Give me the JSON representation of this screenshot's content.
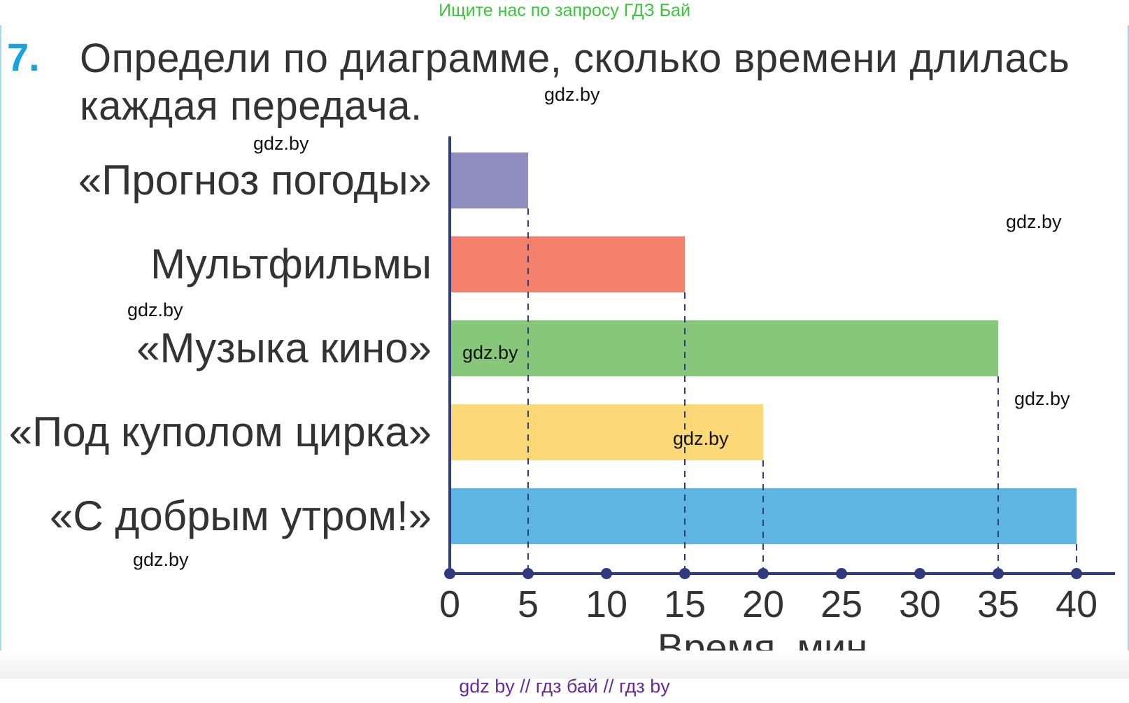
{
  "banner": "Ищите нас по запросу ГДЗ Бай",
  "task": {
    "number": "7.",
    "text": "Определи по диаграмме, сколько времени длилась каждая передача."
  },
  "watermarks": [
    "gdz.by",
    "gdz.by",
    "gdz.by",
    "gdz.by",
    "gdz.by",
    "gdz.by",
    "gdz.by",
    "gdz.by",
    "gdz.by"
  ],
  "footer": "gdz by  //  гдз бай  //  гдз by",
  "chart_data": {
    "type": "bar",
    "orientation": "horizontal",
    "categories": [
      "«Прогноз погоды»",
      "Мультфильмы",
      "«Музыка кино»",
      "«Под куполом цирка»",
      "«С добрым утром!»"
    ],
    "values": [
      5,
      15,
      35,
      20,
      40
    ],
    "colors": [
      "#8f8fbf",
      "#f2806a",
      "#86c77a",
      "#fcd877",
      "#5eb5e2"
    ],
    "xlabel": "Время, мин",
    "xlim": [
      0,
      40
    ],
    "xticks": [
      0,
      5,
      10,
      15,
      20,
      25,
      30,
      35,
      40
    ],
    "axis_color": "#2d3b80",
    "grid": false,
    "reference_lines": "dashed"
  }
}
